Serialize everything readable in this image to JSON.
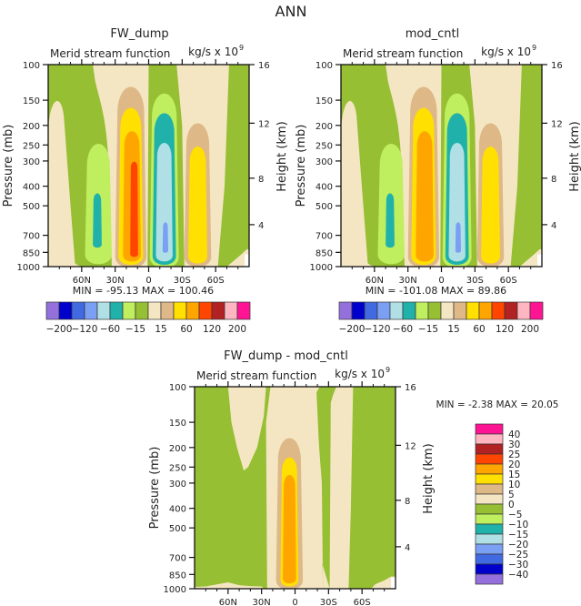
{
  "page_title": "ANN",
  "chart_data": [
    {
      "type": "heatmap",
      "subtype": "filled-contour",
      "title": "FW_dump",
      "left_string": "Merid stream function",
      "right_string": "kg/s x 10",
      "right_string_exponent": "9",
      "ylabel": "Pressure (mb)",
      "ylabel_right": "Height (km)",
      "y_ticks": [
        "100",
        "150",
        "200",
        "250",
        "300",
        "400",
        "500",
        "700",
        "850",
        "1000"
      ],
      "y_right_ticks": [
        "16",
        "12",
        "8",
        "4"
      ],
      "x_ticks": [
        "60N",
        "30N",
        "0",
        "30S",
        "60S"
      ],
      "ylim": [
        1000,
        100
      ],
      "xlim": [
        "90N",
        "90S"
      ],
      "min_label": "MIN = -95.13",
      "max_label": "MAX = 100.46",
      "min": -95.13,
      "max": 100.46,
      "colorbar_labels": [
        "-200",
        "-120",
        "-60",
        "-15",
        "15",
        "60",
        "120",
        "200"
      ],
      "features": [
        {
          "center_lat": "45N",
          "sign": "negative",
          "peak_level": -60,
          "top_mb": 250
        },
        {
          "center_lat": "15N",
          "sign": "positive",
          "peak_level": 120,
          "top_mb": 130
        },
        {
          "center_lat": "15S",
          "sign": "negative",
          "peak_level": -120,
          "top_mb": 140
        },
        {
          "center_lat": "45S",
          "sign": "positive",
          "peak_level": 60,
          "top_mb": 200
        }
      ]
    },
    {
      "type": "heatmap",
      "subtype": "filled-contour",
      "title": "mod_cntl",
      "left_string": "Merid stream function",
      "right_string": "kg/s x 10",
      "right_string_exponent": "9",
      "ylabel": "Pressure (mb)",
      "ylabel_right": "Height (km)",
      "y_ticks": [
        "100",
        "150",
        "200",
        "250",
        "300",
        "400",
        "500",
        "700",
        "850",
        "1000"
      ],
      "y_right_ticks": [
        "16",
        "12",
        "8",
        "4"
      ],
      "x_ticks": [
        "60N",
        "30N",
        "0",
        "30S",
        "60S"
      ],
      "ylim": [
        1000,
        100
      ],
      "xlim": [
        "90N",
        "90S"
      ],
      "min_label": "MIN = -101.08",
      "max_label": "MAX = 89.86",
      "min": -101.08,
      "max": 89.86,
      "colorbar_labels": [
        "-200",
        "-120",
        "-60",
        "-15",
        "15",
        "60",
        "120",
        "200"
      ],
      "features": [
        {
          "center_lat": "45N",
          "sign": "negative",
          "peak_level": -60,
          "top_mb": 250
        },
        {
          "center_lat": "15N",
          "sign": "positive",
          "peak_level": 60,
          "top_mb": 130
        },
        {
          "center_lat": "15S",
          "sign": "negative",
          "peak_level": -120,
          "top_mb": 140
        },
        {
          "center_lat": "45S",
          "sign": "positive",
          "peak_level": 60,
          "top_mb": 200
        }
      ]
    },
    {
      "type": "heatmap",
      "subtype": "filled-contour",
      "title": "FW_dump - mod_cntl",
      "left_string": "Merid stream function",
      "right_string": "kg/s x 10",
      "right_string_exponent": "9",
      "ylabel": "Pressure (mb)",
      "ylabel_right": "Height (km)",
      "y_ticks": [
        "100",
        "150",
        "200",
        "250",
        "300",
        "400",
        "500",
        "700",
        "850",
        "1000"
      ],
      "y_right_ticks": [
        "16",
        "12",
        "8",
        "4"
      ],
      "x_ticks": [
        "60N",
        "30N",
        "0",
        "30S",
        "60S"
      ],
      "ylim": [
        1000,
        100
      ],
      "xlim": [
        "90N",
        "90S"
      ],
      "min_label": "MIN =  -2.38",
      "max_label": "MAX =  20.05",
      "min": -2.38,
      "max": 20.05,
      "colorbar_labels": [
        "40",
        "30",
        "25",
        "20",
        "15",
        "10",
        "5",
        "0",
        "-5",
        "-10",
        "-15",
        "-20",
        "-25",
        "-30",
        "-40"
      ],
      "features": [
        {
          "center_lat": "5N",
          "sign": "positive",
          "peak_level": 15,
          "top_mb": 180
        }
      ]
    }
  ],
  "colorbar_main": [
    "#9370db",
    "#0000cd",
    "#4169e1",
    "#7b9ff2",
    "#b0e0e6",
    "#20b2aa",
    "#bfef5f",
    "#96bf33",
    "#f5e6c3",
    "#deb887",
    "#ffe000",
    "#ffa500",
    "#ff4500",
    "#b22222",
    "#ffb6c1",
    "#ff1493"
  ],
  "colorbar_diff": [
    "#ff1493",
    "#ffb6c1",
    "#b22222",
    "#ff4500",
    "#ffa500",
    "#ffe000",
    "#deb887",
    "#f5e6c3",
    "#96bf33",
    "#bfef5f",
    "#20b2aa",
    "#b0e0e6",
    "#7b9ff2",
    "#4169e1",
    "#0000cd",
    "#9370db"
  ]
}
